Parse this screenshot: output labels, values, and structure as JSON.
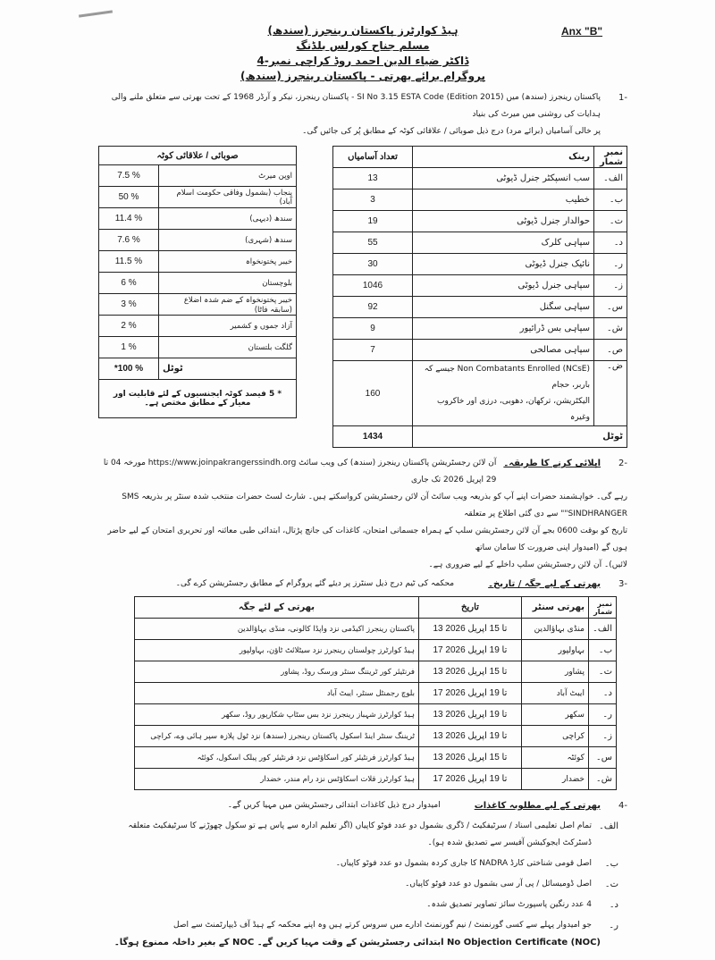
{
  "annex": "Anx \"B\"",
  "header": [
    "ہیڈ کوارٹرز پاکستان رینجرز (سندھ)",
    "مسلم جناح کورلس بلڈنگ",
    "ڈاکٹر ضیاء الدین احمد روڈ کراچی نمبر-4",
    "پروگرام برائے بھرتی - پاکستان رینجرز (سندھ)"
  ],
  "para1": {
    "num": "-1",
    "line1": "پاکستان رینجرز (سندھ) میں SI No 3.15 ESTA Code (Edition 2015) - پاکستان رینجرز، نیکر و آرڈر 1968 کے تحت بھرتی سے متعلق ملنے والی ہدایات کی روشنی میں میرٹ کی بنیاد",
    "line2": "پر خالی آسامیاں (برائے مرد) درج ذیل صوبائی / علاقائی کوٹہ کے مطابق پُر کی جائیں گی۔"
  },
  "ranks": {
    "headers": [
      "نمبر شمار",
      "رینک",
      "تعداد آسامیاں"
    ],
    "rows": [
      [
        "الف۔",
        "سب انسپکٹر جنرل ڈیوٹی",
        "13"
      ],
      [
        "ب۔",
        "خطیب",
        "3"
      ],
      [
        "ت۔",
        "حوالدار جنرل ڈیوٹی",
        "19"
      ],
      [
        "د۔",
        "سپاہی کلرک",
        "55"
      ],
      [
        "ر۔",
        "نائیک جنرل ڈیوٹی",
        "30"
      ],
      [
        "ز۔",
        "سپاہی جنرل ڈیوٹی",
        "1046"
      ],
      [
        "س۔",
        "سپاہی سگنل",
        "92"
      ],
      [
        "ش۔",
        "سپاہی بس ڈرائیور",
        "9"
      ],
      [
        "ص۔",
        "سپاہی مصالحی",
        "7"
      ]
    ],
    "ncse": {
      "num": "ض۔",
      "line1": "Non Combatants Enrolled (NCsE) جیسے کہ باربر، حجام",
      "line2": "الیکٹریشن، ترکھان، دھوبی، درزی اور خاکروب وغیرہ",
      "count": "160"
    },
    "total_label": "ٹوٹل",
    "total": "1434"
  },
  "quota": {
    "header": "صوبائی / علاقائی کوٹہ",
    "rows": [
      [
        "اوپن میرٹ",
        "7.5 %"
      ],
      [
        "پنجاب (بشمول وفاقی حکومت اسلام آباد)",
        "50 %"
      ],
      [
        "سندھ (دیہی)",
        "11.4 %"
      ],
      [
        "سندھ (شہری)",
        "7.6 %"
      ],
      [
        "خیبر پختونخواہ",
        "11.5 %"
      ],
      [
        "بلوچستان",
        "6 %"
      ],
      [
        "خیبر پختونخواہ کے ضم شدہ اضلاع (سابقہ فاٹا)",
        "3 %"
      ],
      [
        "آزاد جموں و کشمیر",
        "2 %"
      ],
      [
        "گلگت بلتستان",
        "1 %"
      ]
    ],
    "total_label": "ٹوٹل",
    "total": "*100 %",
    "note": "* 5 فیصد کوٹہ ایجنسیوں کے لئے قابلیت اور معیار کے مطابق مختص ہے۔"
  },
  "para2": {
    "num": "-2",
    "heading": "اپلائی کرنے کا طریقہ۔",
    "line1": "آن لائن رجسٹریشن پاکستان رینجرز (سندھ) کی ویب سائٹ https://www.joinpakrangerssindh.org مورخہ 04 تا 29 اپریل 2026 تک جاری",
    "url": "https://www.joinpakrangerssindh.org",
    "line2": "رہے گی۔ خواہشمند حضرات اپنے آپ کو بذریعہ ویب سائٹ آن لائن رجسٹریشن کرواسکتے ہیں۔ شارٹ لسٹ حضرات منتخب شدہ سنٹر پر بذریعہ SMS \"SINDHRANGER\" سے دی گئی اطلاع پر متعلقہ",
    "line3": "تاریخ کو بوقت 0600 بجے آن لائن رجسٹریشن سلپ کے ہمراہ جسمانی امتحان، کاغذات کی جانچ پڑتال، ابتدائی طبی معائنہ اور تحریری امتحان کے لیے حاضر ہوں گے (امیدوار اپنی ضرورت کا سامان ساتھ",
    "line4": "لائیں)۔ آن لائن رجسٹریشن سلپ داخلے کے لیے ضروری ہے۔"
  },
  "para3": {
    "num": "-3",
    "heading": "بھرتی کے لیے جگہ / تاریخ۔",
    "text": "محکمہ کی ٹیم درج ذیل سنٹرز پر دیئے گئے پروگرام کے مطابق رجسٹریشن کرے گی۔"
  },
  "centers": {
    "headers": [
      "نمبر شمار",
      "بھرتی سنٹر",
      "تاریخ",
      "بھرتی کے لئے جگہ"
    ],
    "rows": [
      [
        "الف۔",
        "منڈی بہاؤالدین",
        "13 تا 15 اپریل 2026",
        "پاکستان رینجرز اکیڈمی نزد واپڈا کالونی، منڈی بہاؤالدین"
      ],
      [
        "ب۔",
        "بہاولپور",
        "17 تا 19 اپریل 2026",
        "ہیڈ کوارٹرز چولستان رینجرز نزد سیٹلائٹ ٹاؤن، بہاولپور"
      ],
      [
        "ت۔",
        "پشاور",
        "13 تا 15 اپریل 2026",
        "فرنٹیئر کور ٹریننگ سنٹر ورسک روڈ، پشاور"
      ],
      [
        "د۔",
        "ایبٹ آباد",
        "17 تا 19 اپریل 2026",
        "بلوچ رجمنٹل سنٹر، ایبٹ آباد"
      ],
      [
        "ر۔",
        "سکھر",
        "13 تا 19 اپریل 2026",
        "ہیڈ کوارٹرز شہباز رینجرز نزد بس سٹاپ شکارپور روڈ، سکھر"
      ],
      [
        "ز۔",
        "کراچی",
        "13 تا 19 اپریل 2026",
        "ٹریننگ سنٹر اینڈ اسکول پاکستان رینجرز (سندھ) نزد ٹول پلازہ سپر ہائی وے، کراچی"
      ],
      [
        "س۔",
        "کوئٹہ",
        "13 تا 15 اپریل 2026",
        "ہیڈ کوارٹرز فرنٹیئر کور اسکاؤٹس نزد فرنٹیئر کور پبلک اسکول، کوئٹہ"
      ],
      [
        "ش۔",
        "خضدار",
        "17 تا 19 اپریل 2026",
        "ہیڈ کوارٹرز قلات اسکاؤٹس نزد رام مندر، خضدار"
      ]
    ]
  },
  "para4": {
    "num": "-4",
    "heading": "بھرتی کے لیے مطلوبہ کاغذات",
    "text": "امیدوار درج ذیل کاغذات ابتدائی رجسٹریشن میں مہیا کریں گے۔",
    "items": [
      [
        "الف۔",
        "تمام اصل تعلیمی اسناد / سرٹیفکیٹ / ڈگری بشمول دو عدد فوٹو کاپیاں (اگر تعلیم ادارہ سے پاس ہے تو سکول چھوڑنے کا سرٹیفکیٹ متعلقہ ڈسٹرکٹ ایجوکیشن آفیسر سے تصدیق شدہ ہو)۔"
      ],
      [
        "ب۔",
        "اصل قومی شناختی کارڈ NADRA کا جاری کردہ بشمول دو عدد فوٹو کاپیاں۔"
      ],
      [
        "ت۔",
        "اصل ڈومیسائل / پی آر سی بشمول دو عدد فوٹو کاپیاں۔"
      ],
      [
        "د۔",
        "4 عدد رنگین پاسپورٹ سائز تصاویر تصدیق شدہ۔"
      ],
      [
        "ر۔",
        "جو امیدوار پہلے سے کسی گورنمنٹ / نیم گورنمنٹ ادارے میں سروس کرتے ہیں وہ اپنے محکمہ کے ہیڈ آف ڈیپارٹمنٹ سے اصل"
      ]
    ],
    "last_line": "No Objection Certificate (NOC) ابتدائی رجسٹریشن کے وقت مہیا کریں گے۔ NOC کے بغیر داخلہ ممنوع ہوگا۔"
  }
}
